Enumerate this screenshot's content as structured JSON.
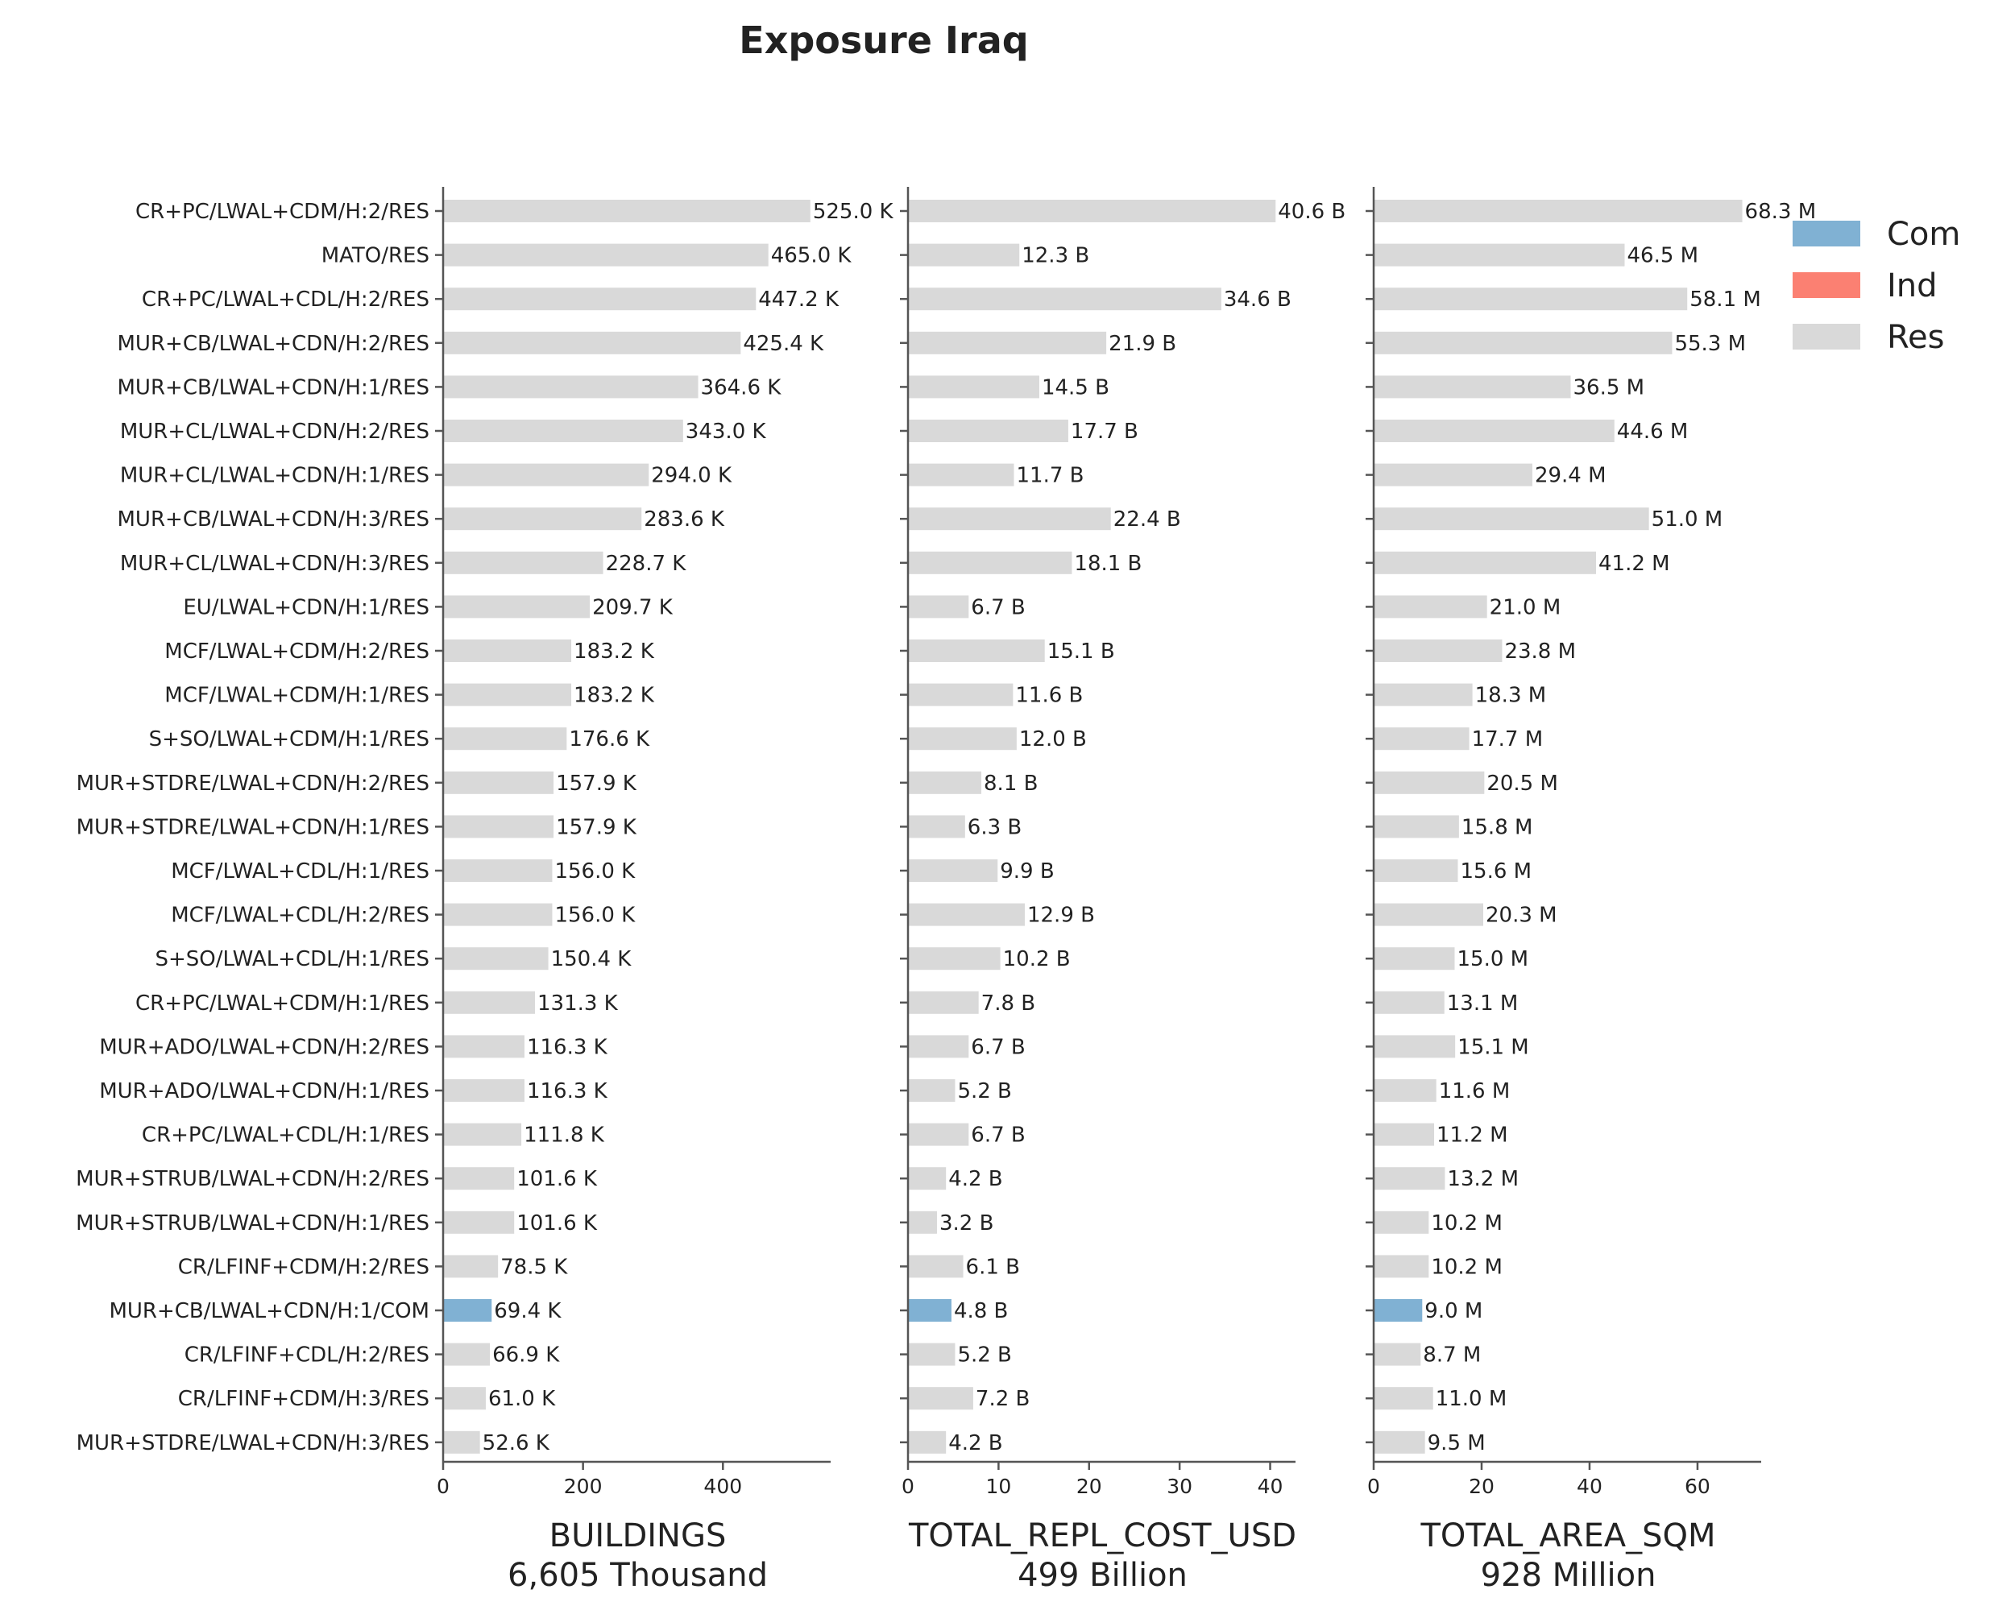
{
  "chart_data": {
    "type": "bar",
    "orientation": "horizontal",
    "title": "Exposure Iraq",
    "categories": [
      "CR+PC/LWAL+CDM/H:2/RES",
      "MATO/RES",
      "CR+PC/LWAL+CDL/H:2/RES",
      "MUR+CB/LWAL+CDN/H:2/RES",
      "MUR+CB/LWAL+CDN/H:1/RES",
      "MUR+CL/LWAL+CDN/H:2/RES",
      "MUR+CL/LWAL+CDN/H:1/RES",
      "MUR+CB/LWAL+CDN/H:3/RES",
      "MUR+CL/LWAL+CDN/H:3/RES",
      "EU/LWAL+CDN/H:1/RES",
      "MCF/LWAL+CDM/H:2/RES",
      "MCF/LWAL+CDM/H:1/RES",
      "S+SO/LWAL+CDM/H:1/RES",
      "MUR+STDRE/LWAL+CDN/H:2/RES",
      "MUR+STDRE/LWAL+CDN/H:1/RES",
      "MCF/LWAL+CDL/H:1/RES",
      "MCF/LWAL+CDL/H:2/RES",
      "S+SO/LWAL+CDL/H:1/RES",
      "CR+PC/LWAL+CDM/H:1/RES",
      "MUR+ADO/LWAL+CDN/H:2/RES",
      "MUR+ADO/LWAL+CDN/H:1/RES",
      "CR+PC/LWAL+CDL/H:1/RES",
      "MUR+STRUB/LWAL+CDN/H:2/RES",
      "MUR+STRUB/LWAL+CDN/H:1/RES",
      "CR/LFINF+CDM/H:2/RES",
      "MUR+CB/LWAL+CDN/H:1/COM",
      "CR/LFINF+CDL/H:2/RES",
      "CR/LFINF+CDM/H:3/RES",
      "MUR+STDRE/LWAL+CDN/H:3/RES"
    ],
    "occupancy": [
      "Res",
      "Res",
      "Res",
      "Res",
      "Res",
      "Res",
      "Res",
      "Res",
      "Res",
      "Res",
      "Res",
      "Res",
      "Res",
      "Res",
      "Res",
      "Res",
      "Res",
      "Res",
      "Res",
      "Res",
      "Res",
      "Res",
      "Res",
      "Res",
      "Res",
      "Com",
      "Res",
      "Res",
      "Res"
    ],
    "panels": [
      {
        "xlabel": "BUILDINGS",
        "total": "6,605 Thousand",
        "xlim": [
          0,
          554
        ],
        "xticks": [
          0,
          200,
          400
        ],
        "values": [
          525.0,
          465.0,
          447.2,
          425.4,
          364.6,
          343.0,
          294.0,
          283.6,
          228.7,
          209.7,
          183.2,
          183.2,
          176.6,
          157.9,
          157.9,
          156.0,
          156.0,
          150.4,
          131.3,
          116.3,
          116.3,
          111.8,
          101.6,
          101.6,
          78.5,
          69.4,
          66.9,
          61.0,
          52.6
        ],
        "labels": [
          "525.0 K",
          "465.0 K",
          "447.2 K",
          "425.4 K",
          "364.6 K",
          "343.0 K",
          "294.0 K",
          "283.6 K",
          "228.7 K",
          "209.7 K",
          "183.2 K",
          "183.2 K",
          "176.6 K",
          "157.9 K",
          "157.9 K",
          "156.0 K",
          "156.0 K",
          "150.4 K",
          "131.3 K",
          "116.3 K",
          "116.3 K",
          "111.8 K",
          "101.6 K",
          "101.6 K",
          "78.5 K",
          "69.4 K",
          "66.9 K",
          "61.0 K",
          "52.6 K"
        ]
      },
      {
        "xlabel": "TOTAL_REPL_COST_USD",
        "total": "499 Billion",
        "xlim": [
          0,
          42.8
        ],
        "xticks": [
          0,
          10,
          20,
          30,
          40
        ],
        "values": [
          40.6,
          12.3,
          34.6,
          21.9,
          14.5,
          17.7,
          11.7,
          22.4,
          18.1,
          6.7,
          15.1,
          11.6,
          12.0,
          8.1,
          6.3,
          9.9,
          12.9,
          10.2,
          7.8,
          6.7,
          5.2,
          6.7,
          4.2,
          3.2,
          6.1,
          4.8,
          5.2,
          7.2,
          4.2
        ],
        "labels": [
          "40.6 B",
          "12.3 B",
          "34.6 B",
          "21.9 B",
          "14.5 B",
          "17.7 B",
          "11.7 B",
          "22.4 B",
          "18.1 B",
          "6.7 B",
          "15.1 B",
          "11.6 B",
          "12.0 B",
          "8.1 B",
          "6.3 B",
          "9.9 B",
          "12.9 B",
          "10.2 B",
          "7.8 B",
          "6.7 B",
          "5.2 B",
          "6.7 B",
          "4.2 B",
          "3.2 B",
          "6.1 B",
          "4.8 B",
          "5.2 B",
          "7.2 B",
          "4.2 B"
        ]
      },
      {
        "xlabel": "TOTAL_AREA_SQM",
        "total": "928 Million",
        "xlim": [
          0,
          71.8
        ],
        "xticks": [
          0,
          20,
          40,
          60
        ],
        "values": [
          68.3,
          46.5,
          58.1,
          55.3,
          36.5,
          44.6,
          29.4,
          51.0,
          41.2,
          21.0,
          23.8,
          18.3,
          17.7,
          20.5,
          15.8,
          15.6,
          20.3,
          15.0,
          13.1,
          15.1,
          11.6,
          11.2,
          13.2,
          10.2,
          10.2,
          9.0,
          8.7,
          11.0,
          9.5
        ],
        "labels": [
          "68.3 M",
          "46.5 M",
          "58.1 M",
          "55.3 M",
          "36.5 M",
          "44.6 M",
          "29.4 M",
          "51.0 M",
          "41.2 M",
          "21.0 M",
          "23.8 M",
          "18.3 M",
          "17.7 M",
          "20.5 M",
          "15.8 M",
          "15.6 M",
          "20.3 M",
          "15.0 M",
          "13.1 M",
          "15.1 M",
          "11.6 M",
          "11.2 M",
          "13.2 M",
          "10.2 M",
          "10.2 M",
          "9.0 M",
          "8.7 M",
          "11.0 M",
          "9.5 M"
        ]
      }
    ],
    "legend": {
      "placement": "top-right",
      "entries": [
        {
          "name": "Com",
          "color": "#80b1d3"
        },
        {
          "name": "Ind",
          "color": "#fb8072"
        },
        {
          "name": "Res",
          "color": "#d9d9d9"
        }
      ]
    },
    "grid": false
  }
}
